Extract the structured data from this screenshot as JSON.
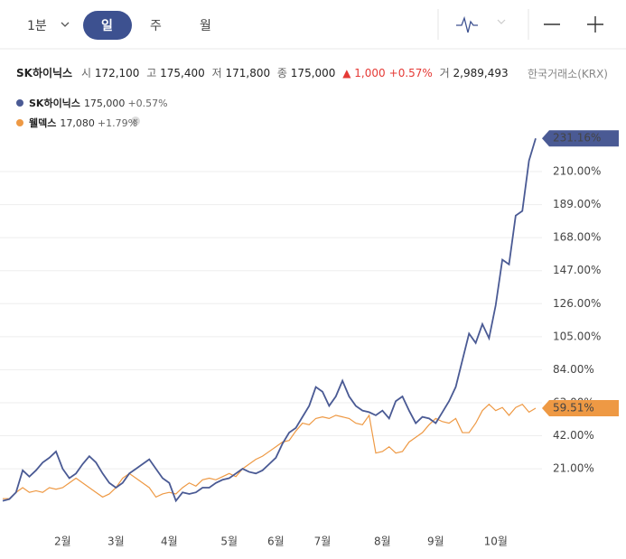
{
  "toolbar": {
    "interval": "1분",
    "tabs": [
      "일",
      "주",
      "월"
    ]
  },
  "header": {
    "name": "SK하이닉스",
    "open_label": "시",
    "open": "172,100",
    "high_label": "고",
    "high": "175,400",
    "low_label": "저",
    "low": "171,800",
    "close_label": "종",
    "close": "175,000",
    "change": "▲ 1,000",
    "change_pct": "+0.57%",
    "volume_label": "거",
    "volume": "2,989,493",
    "exchange": "한국거래소(KRX)"
  },
  "chart_data": {
    "type": "line",
    "categories": [
      null,
      null,
      null,
      null,
      null,
      null,
      null,
      null,
      null,
      "2월",
      null,
      null,
      null,
      null,
      null,
      null,
      null,
      "3월",
      null,
      null,
      null,
      null,
      null,
      null,
      null,
      "4월",
      null,
      null,
      null,
      null,
      null,
      null,
      null,
      null,
      "5월",
      null,
      null,
      null,
      null,
      null,
      null,
      "6월",
      null,
      null,
      null,
      null,
      null,
      null,
      "7월",
      null,
      null,
      null,
      null,
      null,
      null,
      null,
      null,
      "8월",
      null,
      null,
      null,
      null,
      null,
      null,
      null,
      "9월",
      null,
      null,
      null,
      null,
      null,
      null,
      null,
      null,
      "10월",
      null,
      null,
      null,
      null,
      null,
      null
    ],
    "series": [
      {
        "name": "SK하이닉스",
        "price": "175,000",
        "change": "+0.57%",
        "color": "#4a5a94",
        "end_label": "231.16%",
        "values": [
          0.6,
          1.7,
          6,
          20,
          16,
          20,
          25,
          28,
          32,
          21,
          15,
          18,
          24,
          29,
          25,
          18,
          12,
          9,
          12,
          18,
          21,
          24,
          27,
          21,
          15,
          12,
          0.6,
          6,
          5,
          6,
          9,
          9,
          12,
          14,
          15,
          18,
          21,
          19,
          18,
          20,
          24,
          28,
          37,
          44,
          47,
          54,
          61,
          73,
          70,
          61,
          67,
          77,
          67,
          61,
          58,
          57,
          55,
          58,
          53,
          64,
          67,
          58,
          50,
          54,
          53,
          50,
          57,
          64,
          73,
          90,
          107,
          101,
          113,
          104,
          125,
          154,
          151,
          182,
          185,
          217,
          231.16
        ]
      },
      {
        "name": "웰덱스",
        "price": "17,080",
        "change": "+1.79%",
        "color": "#ee9944",
        "end_label": "59.51%",
        "values": [
          2,
          2,
          6,
          9,
          6,
          7,
          6,
          9,
          8,
          9,
          12,
          15,
          12,
          9,
          6,
          3,
          5,
          9,
          15,
          18,
          15,
          12,
          9,
          3,
          5,
          6,
          5,
          9,
          12,
          10,
          14,
          15,
          14,
          16,
          18,
          16,
          21,
          24,
          27,
          29,
          32,
          35,
          38,
          39,
          45,
          50,
          49,
          53,
          54,
          53,
          55,
          54,
          53,
          50,
          49,
          55,
          31,
          32,
          35,
          31,
          32,
          38,
          41,
          44,
          49,
          53,
          51,
          50,
          53,
          44,
          44,
          50,
          58,
          62,
          58,
          60,
          55,
          60,
          62,
          57,
          59.51
        ]
      }
    ],
    "ylim": [
      -2.5,
      233
    ],
    "yticks": [
      {
        "value": 21,
        "label": "21.00%"
      },
      {
        "value": 42,
        "label": "42.00%"
      },
      {
        "value": 63,
        "label": "63.00%"
      },
      {
        "value": 84,
        "label": "84.00%"
      },
      {
        "value": 105,
        "label": "105.00%"
      },
      {
        "value": 126,
        "label": "126.00%"
      },
      {
        "value": 147,
        "label": "147.00%"
      },
      {
        "value": 168,
        "label": "168.00%"
      },
      {
        "value": 189,
        "label": "189.00%"
      },
      {
        "value": 210,
        "label": "210.00%"
      }
    ],
    "grid": true
  }
}
